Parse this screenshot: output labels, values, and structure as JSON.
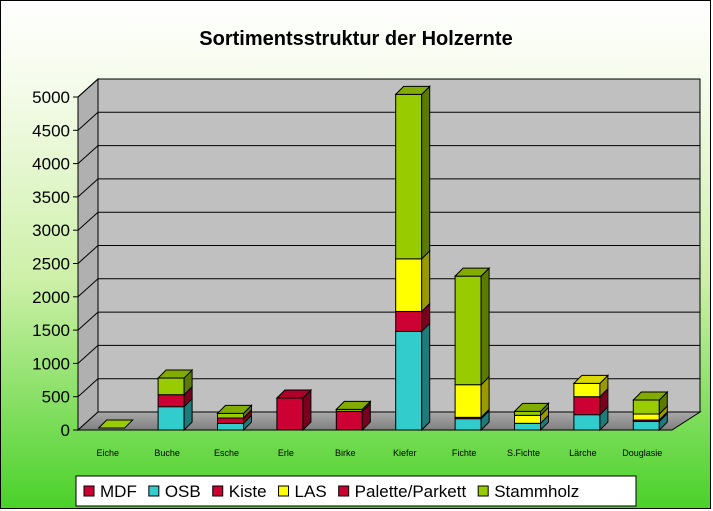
{
  "chart_data": {
    "type": "bar",
    "stacked": true,
    "three_d": true,
    "title": "Sortimentsstruktur der Holzernte",
    "categories": [
      "Eiche",
      "Buche",
      "Esche",
      "Erle",
      "Birke",
      "Kiefer",
      "Fichte",
      "S.Fichte",
      "Lärche",
      "Douglasie"
    ],
    "series": [
      {
        "name": "MDF",
        "color": "#cc0033",
        "values": [
          0,
          0,
          0,
          0,
          0,
          0,
          0,
          0,
          0,
          0
        ]
      },
      {
        "name": "OSB",
        "color": "#33cccc",
        "values": [
          0,
          350,
          100,
          0,
          0,
          1480,
          170,
          100,
          230,
          130
        ]
      },
      {
        "name": "Kiste",
        "color": "#cc0033",
        "values": [
          0,
          180,
          80,
          480,
          280,
          300,
          20,
          0,
          270,
          20
        ]
      },
      {
        "name": "LAS",
        "color": "#ffff00",
        "values": [
          0,
          0,
          0,
          0,
          0,
          790,
          490,
          120,
          200,
          90
        ]
      },
      {
        "name": "Palette/Parkett",
        "color": "#cc0033",
        "values": [
          0,
          0,
          0,
          0,
          0,
          0,
          0,
          0,
          0,
          0
        ]
      },
      {
        "name": "Stammholz",
        "color": "#99cc00",
        "values": [
          0,
          250,
          70,
          0,
          30,
          2470,
          1630,
          60,
          0,
          210
        ]
      }
    ],
    "ylim": [
      0,
      5000
    ],
    "yticks": [
      0,
      500,
      1000,
      1500,
      2000,
      2500,
      3000,
      3500,
      4000,
      4500,
      5000
    ],
    "grid": true,
    "legend": "bottom"
  }
}
